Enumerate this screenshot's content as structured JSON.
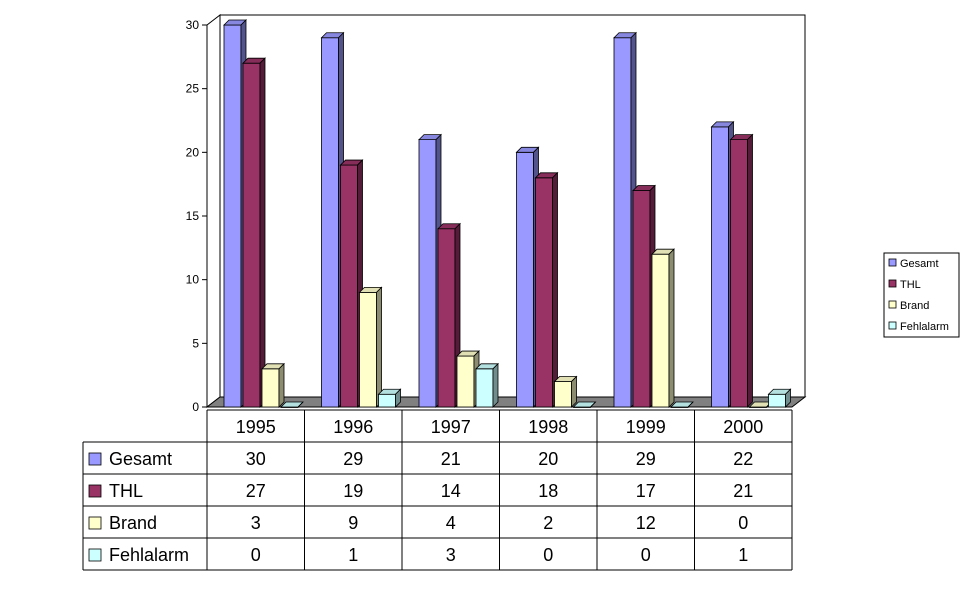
{
  "chart_data": {
    "type": "bar",
    "title": "",
    "xlabel": "",
    "ylabel": "",
    "categories": [
      "1995",
      "1996",
      "1997",
      "1998",
      "1999",
      "2000"
    ],
    "ylim": [
      0,
      30
    ],
    "yticks": [
      0,
      5,
      10,
      15,
      20,
      25,
      30
    ],
    "grid": false,
    "legend_position": "right",
    "series": [
      {
        "name": "Gesamt",
        "color": "#9999FF",
        "values": [
          30,
          29,
          21,
          20,
          29,
          22
        ]
      },
      {
        "name": "THL",
        "color": "#993366",
        "values": [
          27,
          19,
          14,
          18,
          17,
          21
        ]
      },
      {
        "name": "Brand",
        "color": "#FFFFCC",
        "values": [
          3,
          9,
          4,
          2,
          12,
          0
        ]
      },
      {
        "name": "Fehlalarm",
        "color": "#CCFFFF",
        "values": [
          0,
          1,
          3,
          0,
          0,
          1
        ]
      }
    ],
    "data_table": true
  }
}
